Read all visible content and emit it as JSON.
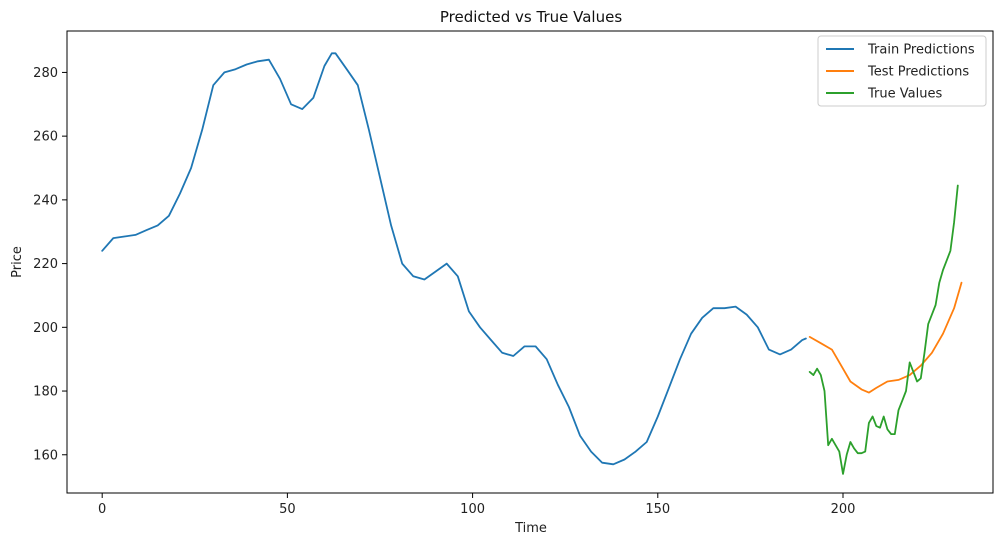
{
  "chart_data": {
    "type": "line",
    "title": "Predicted vs True Values",
    "xlabel": "Time",
    "ylabel": "Price",
    "xlim": [
      -9.5,
      240.5
    ],
    "ylim": [
      148,
      293
    ],
    "xticks": [
      0,
      50,
      100,
      150,
      200
    ],
    "yticks": [
      160,
      180,
      200,
      220,
      240,
      260,
      280
    ],
    "grid": false,
    "legend_position": "top-right",
    "series": [
      {
        "name": "Train Predictions",
        "color": "#1f77b4",
        "points": [
          [
            0,
            224
          ],
          [
            3,
            228
          ],
          [
            6,
            228.5
          ],
          [
            9,
            229
          ],
          [
            12,
            230.5
          ],
          [
            15,
            232
          ],
          [
            18,
            235
          ],
          [
            21,
            242
          ],
          [
            24,
            250
          ],
          [
            27,
            262
          ],
          [
            30,
            276
          ],
          [
            33,
            280
          ],
          [
            36,
            281
          ],
          [
            39,
            282.5
          ],
          [
            42,
            283.5
          ],
          [
            45,
            284
          ],
          [
            48,
            278
          ],
          [
            51,
            270
          ],
          [
            54,
            268.5
          ],
          [
            57,
            272
          ],
          [
            60,
            282
          ],
          [
            62,
            286
          ],
          [
            63,
            286
          ],
          [
            66,
            281
          ],
          [
            69,
            276
          ],
          [
            72,
            262
          ],
          [
            75,
            247
          ],
          [
            78,
            232
          ],
          [
            81,
            220
          ],
          [
            84,
            216
          ],
          [
            87,
            215
          ],
          [
            90,
            217.5
          ],
          [
            93,
            220
          ],
          [
            96,
            216
          ],
          [
            99,
            205
          ],
          [
            102,
            200
          ],
          [
            105,
            196
          ],
          [
            108,
            192
          ],
          [
            111,
            191
          ],
          [
            114,
            194
          ],
          [
            117,
            194
          ],
          [
            120,
            190
          ],
          [
            123,
            182
          ],
          [
            126,
            175
          ],
          [
            129,
            166
          ],
          [
            132,
            161
          ],
          [
            135,
            157.5
          ],
          [
            138,
            157
          ],
          [
            141,
            158.5
          ],
          [
            144,
            161
          ],
          [
            147,
            164
          ],
          [
            150,
            172
          ],
          [
            153,
            181
          ],
          [
            156,
            190
          ],
          [
            159,
            198
          ],
          [
            162,
            203
          ],
          [
            165,
            206
          ],
          [
            168,
            206
          ],
          [
            171,
            206.5
          ],
          [
            174,
            204
          ],
          [
            177,
            200
          ],
          [
            180,
            193
          ],
          [
            183,
            191.5
          ],
          [
            186,
            193
          ],
          [
            189,
            196
          ],
          [
            190,
            196.5
          ]
        ]
      },
      {
        "name": "Test Predictions",
        "color": "#ff7f0e",
        "points": [
          [
            191,
            197
          ],
          [
            194,
            195
          ],
          [
            197,
            193
          ],
          [
            200,
            187
          ],
          [
            202,
            183
          ],
          [
            205,
            180.5
          ],
          [
            207,
            179.5
          ],
          [
            209,
            181
          ],
          [
            212,
            183
          ],
          [
            215,
            183.5
          ],
          [
            218,
            185
          ],
          [
            221,
            188
          ],
          [
            224,
            192
          ],
          [
            227,
            198
          ],
          [
            230,
            206
          ],
          [
            232,
            214
          ]
        ]
      },
      {
        "name": "True Values",
        "color": "#2ca02c",
        "points": [
          [
            191,
            186
          ],
          [
            192,
            185
          ],
          [
            193,
            187
          ],
          [
            194,
            185
          ],
          [
            195,
            180
          ],
          [
            196,
            163
          ],
          [
            197,
            165
          ],
          [
            198,
            163
          ],
          [
            199,
            161
          ],
          [
            200,
            154
          ],
          [
            201,
            160
          ],
          [
            202,
            164
          ],
          [
            203,
            162
          ],
          [
            204,
            160.5
          ],
          [
            205,
            160.5
          ],
          [
            206,
            161
          ],
          [
            207,
            170
          ],
          [
            208,
            172
          ],
          [
            209,
            169
          ],
          [
            210,
            168.5
          ],
          [
            211,
            172
          ],
          [
            212,
            168
          ],
          [
            213,
            166.5
          ],
          [
            214,
            166.5
          ],
          [
            215,
            174
          ],
          [
            216,
            177
          ],
          [
            217,
            180
          ],
          [
            218,
            189
          ],
          [
            219,
            186
          ],
          [
            220,
            183
          ],
          [
            221,
            184
          ],
          [
            222,
            192
          ],
          [
            223,
            201
          ],
          [
            224,
            204
          ],
          [
            225,
            207
          ],
          [
            226,
            214
          ],
          [
            227,
            218
          ],
          [
            228,
            221
          ],
          [
            229,
            224
          ],
          [
            230,
            233
          ],
          [
            231,
            244.5
          ]
        ]
      }
    ]
  }
}
